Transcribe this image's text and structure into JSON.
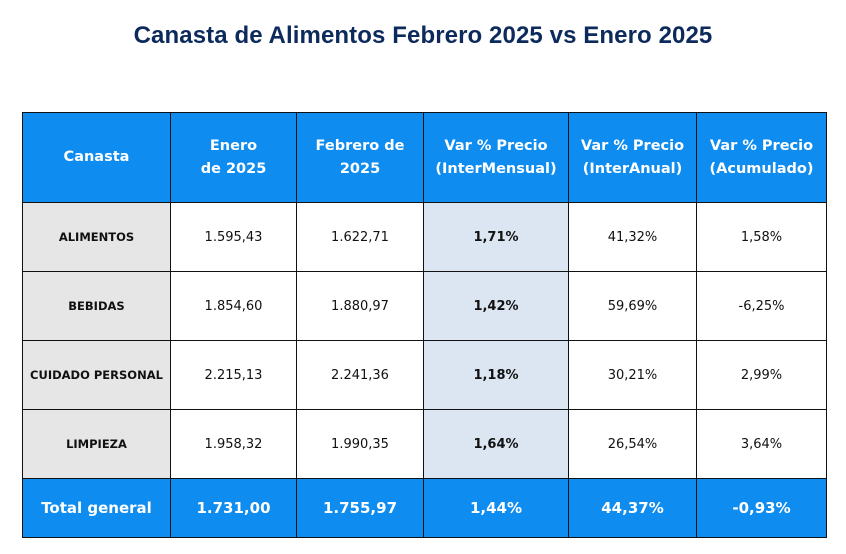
{
  "title": "Canasta de Alimentos Febrero 2025 vs Enero 2025",
  "table": {
    "headers": [
      [
        "Canasta"
      ],
      [
        "Enero",
        "de 2025"
      ],
      [
        "Febrero de",
        "2025"
      ],
      [
        "Var % Precio",
        "(InterMensual)"
      ],
      [
        "Var % Precio",
        "(InterAnual)"
      ],
      [
        "Var % Precio",
        "(Acumulado)"
      ]
    ],
    "rows": [
      [
        "ALIMENTOS",
        "1.595,43",
        "1.622,71",
        "1,71%",
        "41,32%",
        "1,58%"
      ],
      [
        "BEBIDAS",
        "1.854,60",
        "1.880,97",
        "1,42%",
        "59,69%",
        "-6,25%"
      ],
      [
        "CUIDADO PERSONAL",
        "2.215,13",
        "2.241,36",
        "1,18%",
        "30,21%",
        "2,99%"
      ],
      [
        "LIMPIEZA",
        "1.958,32",
        "1.990,35",
        "1,64%",
        "26,54%",
        "3,64%"
      ]
    ],
    "total": [
      "Total general",
      "1.731,00",
      "1.755,97",
      "1,44%",
      "44,37%",
      "-0,93%"
    ]
  },
  "colors": {
    "header_bg": "#0f8cf0",
    "category_bg": "#e6e6e6",
    "highlight_bg": "#dce6f2",
    "title": "#0c2a5c"
  }
}
